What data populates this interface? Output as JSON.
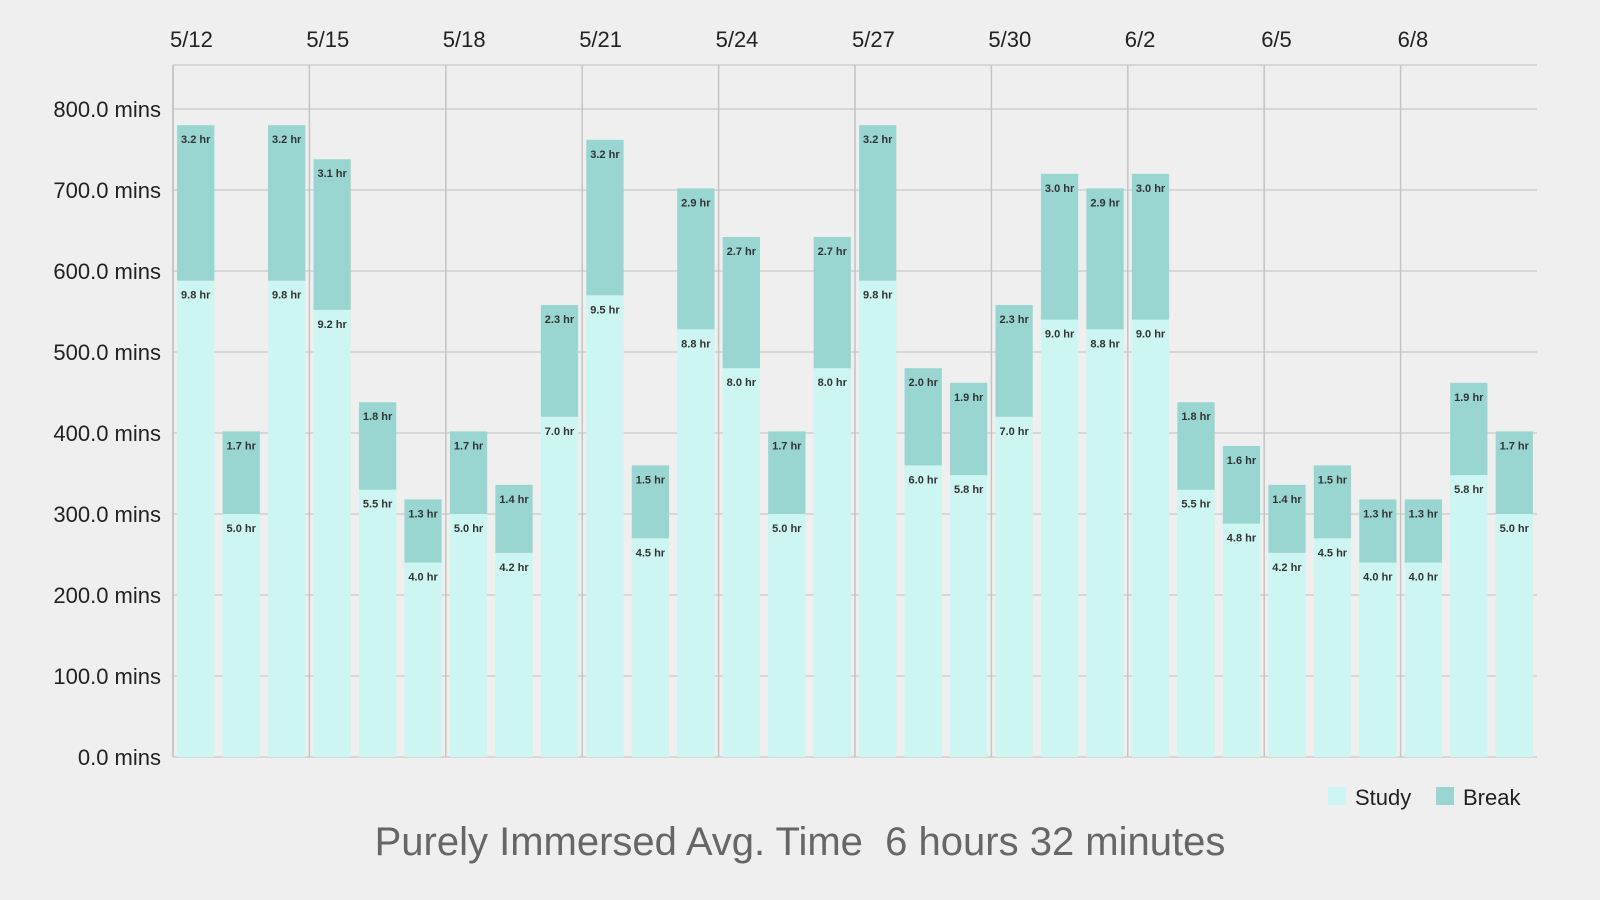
{
  "summary": {
    "label": "Purely Immersed Avg. Time",
    "value": "6 hours 32 minutes"
  },
  "legend": [
    {
      "name": "Study",
      "color": "#cdf5f1"
    },
    {
      "name": "Break",
      "color": "#99d6d1"
    }
  ],
  "chart_data": {
    "type": "bar",
    "stacked": true,
    "y_unit": "mins",
    "ylim": [
      0,
      800
    ],
    "y_ticks": [
      "0.0 mins",
      "100.0 mins",
      "200.0 mins",
      "300.0 mins",
      "400.0 mins",
      "500.0 mins",
      "600.0 mins",
      "700.0 mins",
      "800.0 mins"
    ],
    "x_ticks": [
      "5/12",
      "5/15",
      "5/18",
      "5/21",
      "5/24",
      "5/27",
      "5/30",
      "6/2",
      "6/5",
      "6/8"
    ],
    "x_tick_bar_index": [
      0,
      3,
      6,
      9,
      12,
      15,
      18,
      21,
      24,
      27
    ],
    "grid": true,
    "legend_position": "bottom-right",
    "series": [
      {
        "name": "Study",
        "values": [
          588,
          300,
          588,
          552,
          330,
          240,
          300,
          252,
          420,
          570,
          270,
          528,
          480,
          300,
          480,
          588,
          360,
          348,
          420,
          540,
          528,
          540,
          330,
          288,
          252,
          270,
          240,
          240,
          348,
          300
        ],
        "labels": [
          "9.8 hr",
          "5.0 hr",
          "9.8 hr",
          "9.2 hr",
          "5.5 hr",
          "4.0 hr",
          "5.0 hr",
          "4.2 hr",
          "7.0 hr",
          "9.5 hr",
          "4.5 hr",
          "8.8 hr",
          "8.0 hr",
          "5.0 hr",
          "8.0 hr",
          "9.8 hr",
          "6.0 hr",
          "5.8 hr",
          "7.0 hr",
          "9.0 hr",
          "8.8 hr",
          "9.0 hr",
          "5.5 hr",
          "4.8 hr",
          "4.2 hr",
          "4.5 hr",
          "4.0 hr",
          "4.0 hr",
          "5.8 hr",
          "5.0 hr"
        ]
      },
      {
        "name": "Break",
        "values": [
          192,
          102,
          192,
          186,
          108,
          78,
          102,
          84,
          138,
          192,
          90,
          174,
          162,
          102,
          162,
          192,
          120,
          114,
          138,
          180,
          174,
          180,
          108,
          96,
          84,
          90,
          78,
          78,
          114,
          102
        ],
        "labels": [
          "3.2 hr",
          "1.7 hr",
          "3.2 hr",
          "3.1 hr",
          "1.8 hr",
          "1.3 hr",
          "1.7 hr",
          "1.4 hr",
          "2.3 hr",
          "3.2 hr",
          "1.5 hr",
          "2.9 hr",
          "2.7 hr",
          "1.7 hr",
          "2.7 hr",
          "3.2 hr",
          "2.0 hr",
          "1.9 hr",
          "2.3 hr",
          "3.0 hr",
          "2.9 hr",
          "3.0 hr",
          "1.8 hr",
          "1.6 hr",
          "1.4 hr",
          "1.5 hr",
          "1.3 hr",
          "1.3 hr",
          "1.9 hr",
          "1.7 hr"
        ]
      }
    ]
  }
}
